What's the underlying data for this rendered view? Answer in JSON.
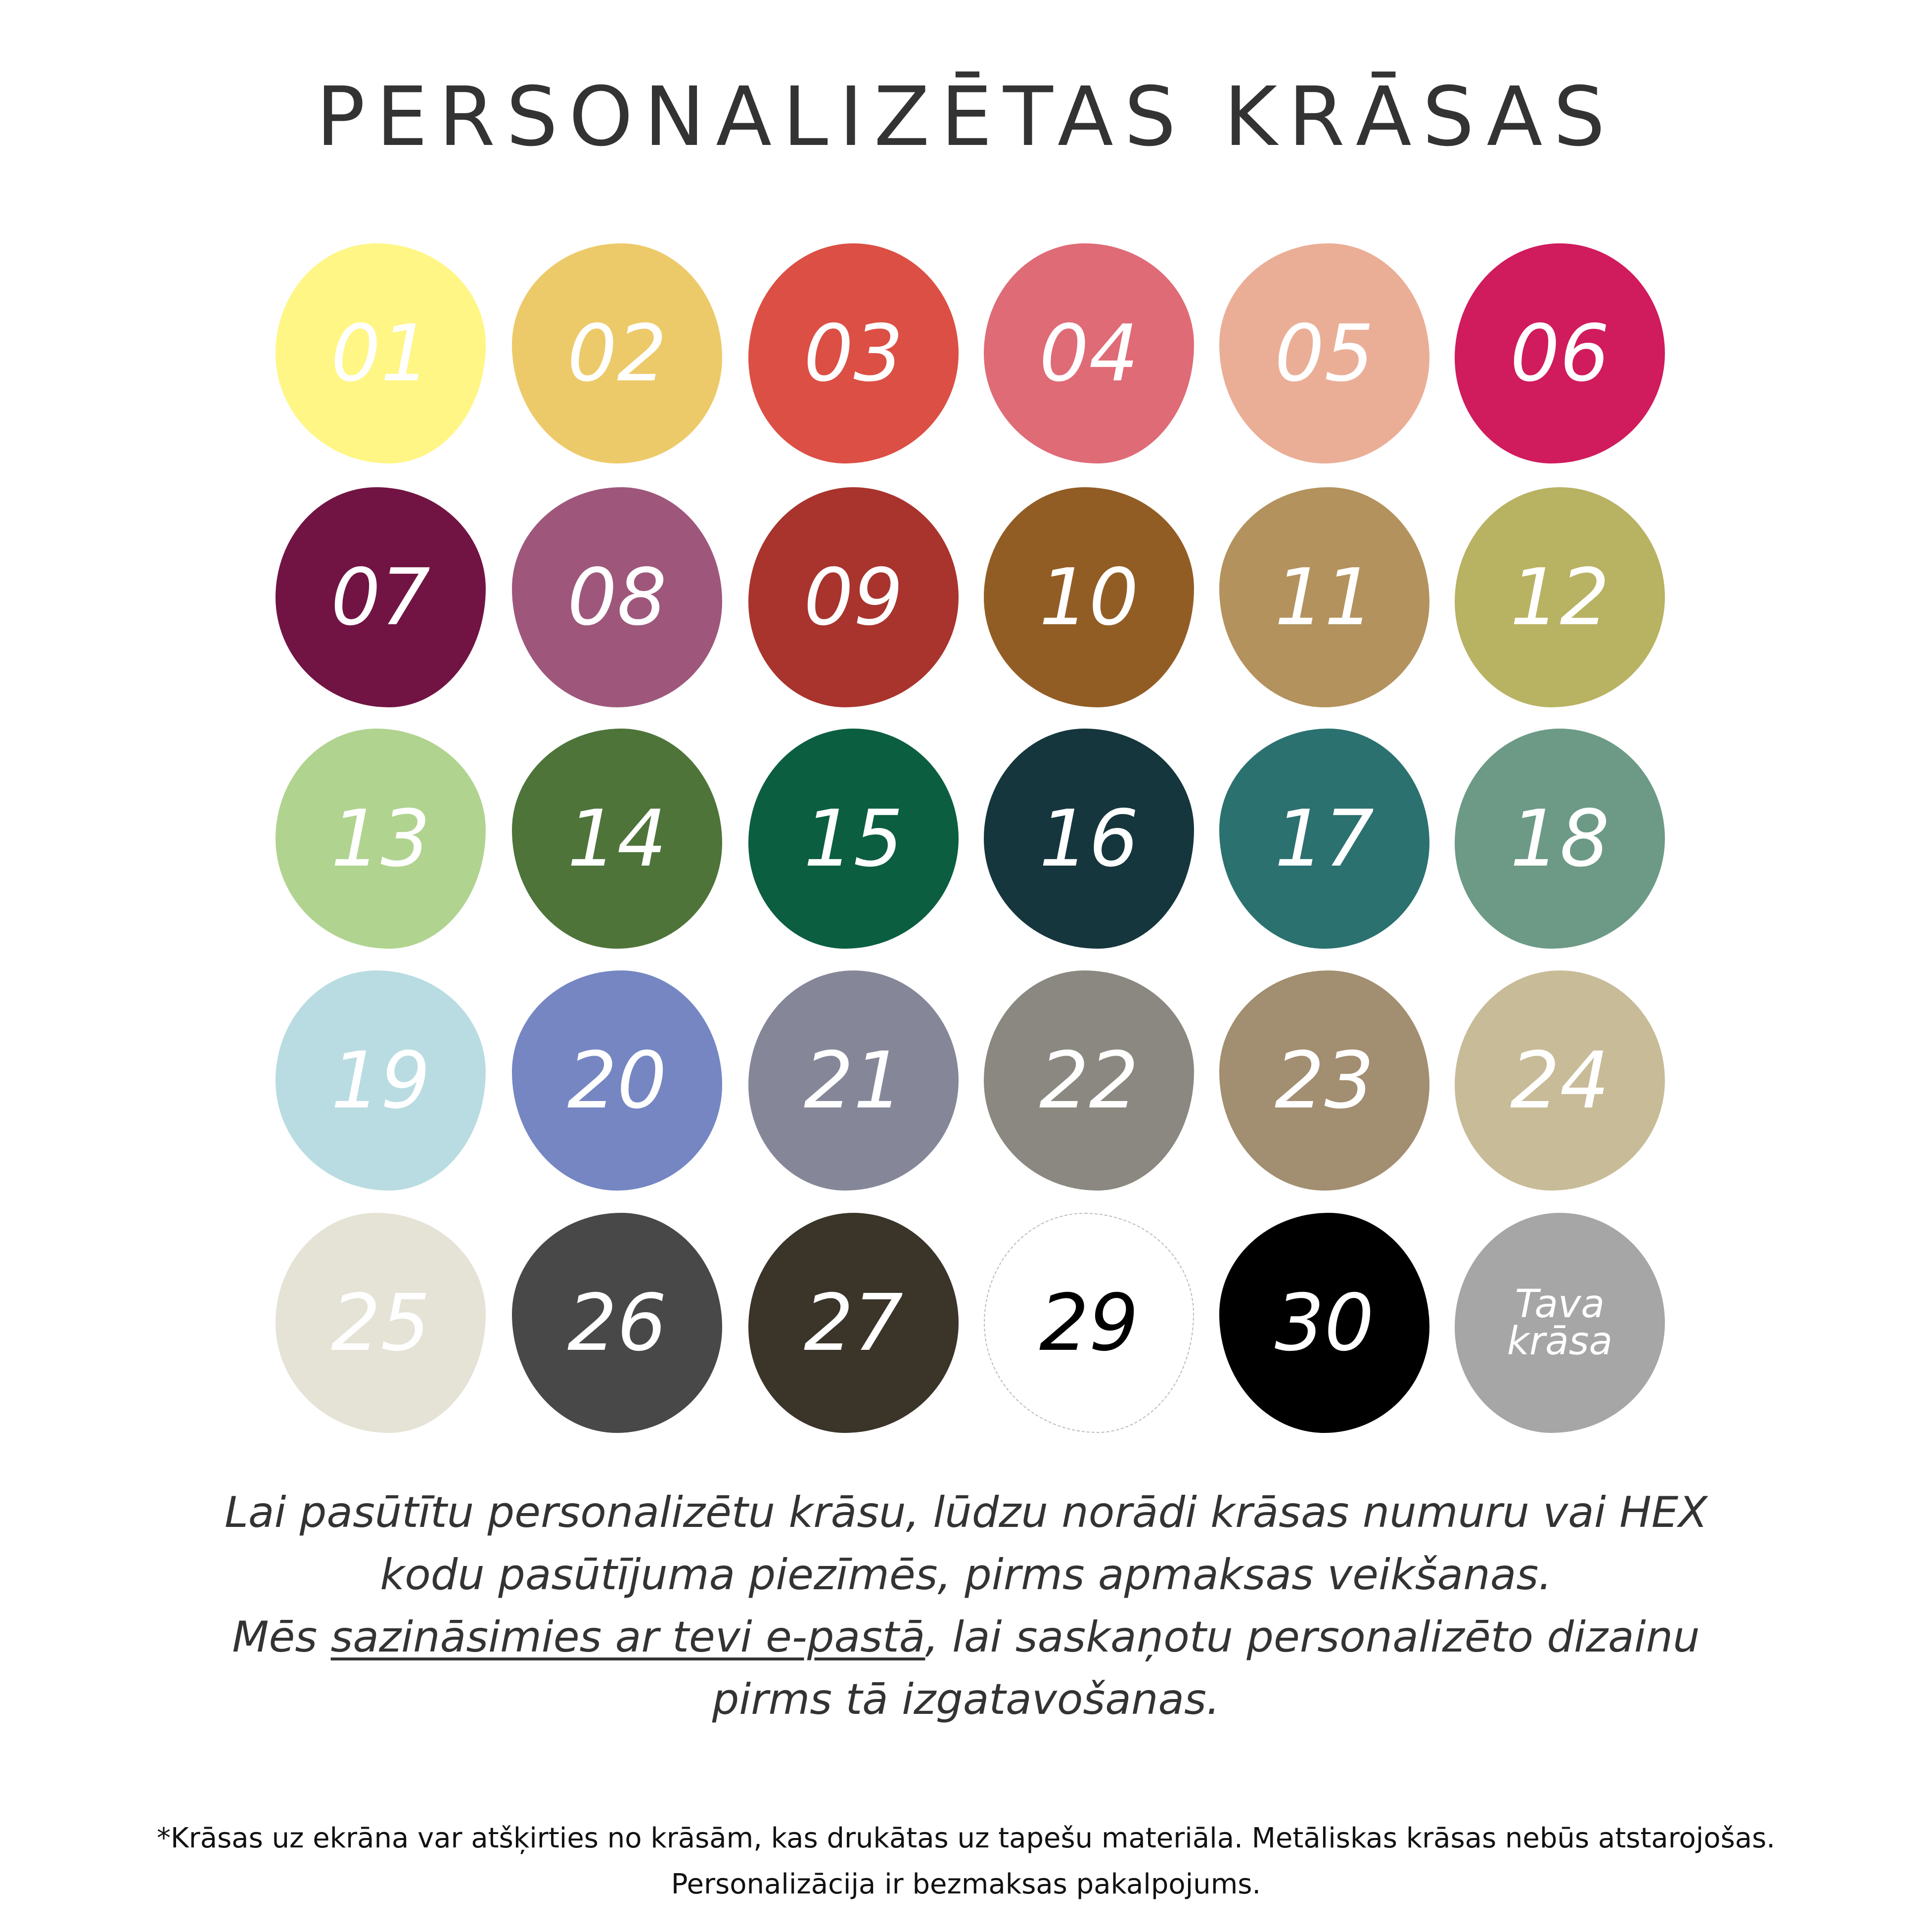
{
  "title": "PERSONALIZĒTAS KRĀSAS",
  "swatches": [
    {
      "label": "01",
      "color": "#fff685",
      "text_color": "#ffffff"
    },
    {
      "label": "02",
      "color": "#edca69",
      "text_color": "#ffffff"
    },
    {
      "label": "03",
      "color": "#dc4f44",
      "text_color": "#ffffff"
    },
    {
      "label": "04",
      "color": "#df6b77",
      "text_color": "#ffffff"
    },
    {
      "label": "05",
      "color": "#eaae97",
      "text_color": "#ffffff"
    },
    {
      "label": "06",
      "color": "#d01b5d",
      "text_color": "#ffffff"
    },
    {
      "label": "07",
      "color": "#711443",
      "text_color": "#ffffff"
    },
    {
      "label": "08",
      "color": "#9e577b",
      "text_color": "#ffffff"
    },
    {
      "label": "09",
      "color": "#a8342d",
      "text_color": "#ffffff"
    },
    {
      "label": "10",
      "color": "#925d25",
      "text_color": "#ffffff"
    },
    {
      "label": "11",
      "color": "#b3925d",
      "text_color": "#ffffff"
    },
    {
      "label": "12",
      "color": "#b8b263",
      "text_color": "#ffffff"
    },
    {
      "label": "13",
      "color": "#b1d390",
      "text_color": "#ffffff"
    },
    {
      "label": "14",
      "color": "#4e743a",
      "text_color": "#ffffff"
    },
    {
      "label": "15",
      "color": "#0c5e41",
      "text_color": "#ffffff"
    },
    {
      "label": "16",
      "color": "#15363c",
      "text_color": "#ffffff"
    },
    {
      "label": "17",
      "color": "#2b7170",
      "text_color": "#ffffff"
    },
    {
      "label": "18",
      "color": "#6c9a86",
      "text_color": "#ffffff"
    },
    {
      "label": "19",
      "color": "#b8dce1",
      "text_color": "#ffffff"
    },
    {
      "label": "20",
      "color": "#7586c2",
      "text_color": "#ffffff"
    },
    {
      "label": "21",
      "color": "#858799",
      "text_color": "#ffffff"
    },
    {
      "label": "22",
      "color": "#8a8880",
      "text_color": "#ffffff"
    },
    {
      "label": "23",
      "color": "#a28e70",
      "text_color": "#ffffff"
    },
    {
      "label": "24",
      "color": "#c8bb98",
      "text_color": "#ffffff"
    },
    {
      "label": "25",
      "color": "#e5e2d6",
      "text_color": "#ffffff"
    },
    {
      "label": "26",
      "color": "#484848",
      "text_color": "#ffffff"
    },
    {
      "label": "27",
      "color": "#3a3429",
      "text_color": "#ffffff"
    },
    {
      "label": "29",
      "color": "#ffffff",
      "text_color": "#000000"
    },
    {
      "label": "30",
      "color": "#000000",
      "text_color": "#ffffff"
    },
    {
      "label": "Tava krāsa",
      "color": "#a6a6a6",
      "text_color": "#ffffff"
    }
  ],
  "instructions": {
    "line1": "Lai pasūtītu personalizētu krāsu, lūdzu norādi krāsas numuru vai HEX",
    "line2": "kodu pasūtījuma piezīmēs, pirms apmaksas veikšanas.",
    "line3_start": "Mēs ",
    "line3_link": "sazināsimies ar tevi e-pastā",
    "line3_end": ", lai saskaņotu personalizēto dizainu",
    "line4": "pirms tā izgatavošanas."
  },
  "footnote": {
    "line1": "*Krāsas uz ekrāna var atšķirties no krāsām, kas drukātas uz tapešu materiāla. Metāliskas krāsas nebūs atstarojošas.",
    "line2": "Personalizācija ir bezmaksas pakalpojums."
  }
}
